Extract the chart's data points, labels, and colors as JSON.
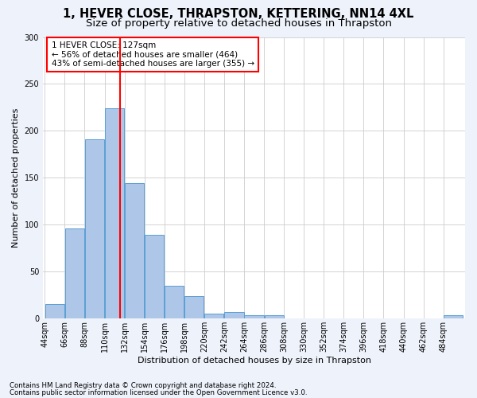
{
  "title": "1, HEVER CLOSE, THRAPSTON, KETTERING, NN14 4XL",
  "subtitle": "Size of property relative to detached houses in Thrapston",
  "xlabel_bottom": "Distribution of detached houses by size in Thrapston",
  "ylabel": "Number of detached properties",
  "bar_values": [
    15,
    96,
    191,
    224,
    144,
    89,
    35,
    24,
    5,
    7,
    3,
    3,
    0,
    0,
    0,
    0,
    0,
    0,
    0,
    0,
    3
  ],
  "bin_labels": [
    "44sqm",
    "66sqm",
    "88sqm",
    "110sqm",
    "132sqm",
    "154sqm",
    "176sqm",
    "198sqm",
    "220sqm",
    "242sqm",
    "264sqm",
    "286sqm",
    "308sqm",
    "330sqm",
    "352sqm",
    "374sqm",
    "396sqm",
    "418sqm",
    "440sqm",
    "462sqm",
    "484sqm"
  ],
  "bar_color": "#aec6e8",
  "bar_edge_color": "#5a9fd4",
  "vline_x": 127,
  "vline_color": "red",
  "annotation_title": "1 HEVER CLOSE: 127sqm",
  "annotation_line1": "← 56% of detached houses are smaller (464)",
  "annotation_line2": "43% of semi-detached houses are larger (355) →",
  "annotation_box_color": "white",
  "annotation_box_edge": "red",
  "ylim": [
    0,
    300
  ],
  "yticks": [
    0,
    50,
    100,
    150,
    200,
    250,
    300
  ],
  "footnote1": "Contains HM Land Registry data © Crown copyright and database right 2024.",
  "footnote2": "Contains public sector information licensed under the Open Government Licence v3.0.",
  "bg_color": "#eef2fb",
  "plot_bg_color": "#ffffff",
  "grid_color": "#cccccc",
  "title_fontsize": 10.5,
  "subtitle_fontsize": 9.5,
  "axis_label_fontsize": 8,
  "tick_fontsize": 7,
  "annotation_fontsize": 7.5,
  "bin_width": 22
}
